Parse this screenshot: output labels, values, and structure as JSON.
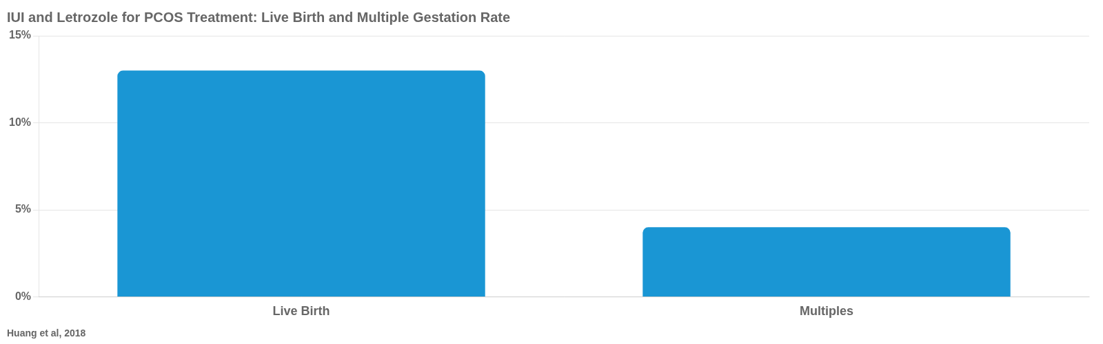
{
  "chart_data": {
    "type": "bar",
    "title": "IUI and Letrozole for PCOS Treatment: Live Birth and Multiple Gestation Rate",
    "categories": [
      "Live Birth",
      "Multiples"
    ],
    "values": [
      13,
      4
    ],
    "color": "#1a96d4",
    "ylim": [
      0,
      15
    ],
    "yticks": [
      {
        "value": 0,
        "label": "0%"
      },
      {
        "value": 5,
        "label": "5%"
      },
      {
        "value": 10,
        "label": "10%"
      },
      {
        "value": 15,
        "label": "15%"
      }
    ],
    "grid": true,
    "annotations": [
      "Huang et al, 2018"
    ]
  }
}
